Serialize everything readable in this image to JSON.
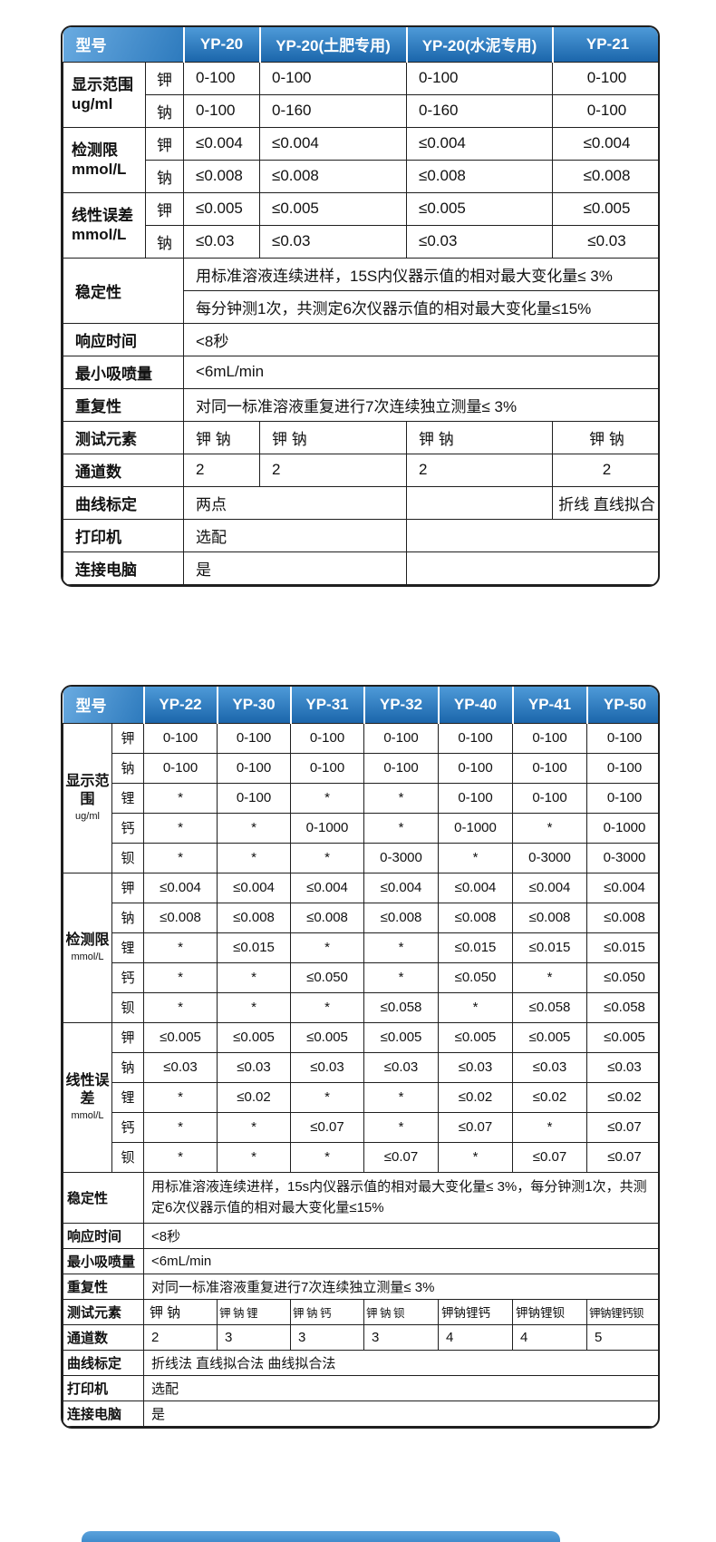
{
  "theme": {
    "header_gradient_top": "#4e9ad8",
    "header_gradient_bottom": "#1b66ab",
    "header_text_color": "#ffffff",
    "border_color": "#1f1f1f",
    "body_text_color": "#111111"
  },
  "table1": {
    "header": [
      "型号",
      "YP-20",
      "YP-20(土肥专用)",
      "YP-20(水泥专用)",
      "YP-21"
    ],
    "groups": [
      {
        "label": "显示范围",
        "unit": "ug/ml",
        "rows": [
          {
            "element": "钾",
            "values": [
              "0-100",
              "0-100",
              "0-100",
              "0-100"
            ]
          },
          {
            "element": "钠",
            "values": [
              "0-100",
              "0-160",
              "0-160",
              "0-100"
            ]
          }
        ]
      },
      {
        "label": "检测限",
        "unit": "mmol/L",
        "rows": [
          {
            "element": "钾",
            "values": [
              "≤0.004",
              "≤0.004",
              "≤0.004",
              "≤0.004"
            ]
          },
          {
            "element": "钠",
            "values": [
              "≤0.008",
              "≤0.008",
              "≤0.008",
              "≤0.008"
            ]
          }
        ]
      },
      {
        "label": "线性误差",
        "unit": "mmol/L",
        "rows": [
          {
            "element": "钾",
            "values": [
              "≤0.005",
              "≤0.005",
              "≤0.005",
              "≤0.005"
            ]
          },
          {
            "element": "钠",
            "values": [
              "≤0.03",
              "≤0.03",
              "≤0.03",
              "≤0.03"
            ]
          }
        ]
      }
    ],
    "stability": {
      "label": "稳定性",
      "lines": [
        "用标准溶液连续进样，15S内仪器示值的相对最大变化量≤ 3%",
        "每分钟测1次，共测定6次仪器示值的相对最大变化量≤15%"
      ]
    },
    "simple_rows": [
      {
        "label": "响应时间",
        "value": "<8秒"
      },
      {
        "label": "最小吸喷量",
        "value": "<6mL/min"
      },
      {
        "label": "重复性",
        "value": "对同一标准溶液重复进行7次连续独立测量≤ 3%"
      }
    ],
    "elements_row": {
      "label": "测试元素",
      "values": [
        "钾 钠",
        "钾 钠",
        "钾 钠",
        "钾 钠"
      ]
    },
    "channels_row": {
      "label": "通道数",
      "values": [
        "2",
        "2",
        "2",
        "2"
      ]
    },
    "calibration_row": {
      "label": "曲线标定",
      "two_point": "两点",
      "col3": "",
      "col4": "折线 直线拟合"
    },
    "printer_row": {
      "label": "打印机",
      "value": "选配",
      "empty": ""
    },
    "pc_row": {
      "label": "连接电脑",
      "value": "是",
      "empty": ""
    }
  },
  "table2": {
    "header": [
      "型号",
      "YP-22",
      "YP-30",
      "YP-31",
      "YP-32",
      "YP-40",
      "YP-41",
      "YP-50"
    ],
    "groups": [
      {
        "label": "显示范围",
        "unit": "ug/ml",
        "rows": [
          {
            "element": "钾",
            "values": [
              "0-100",
              "0-100",
              "0-100",
              "0-100",
              "0-100",
              "0-100",
              "0-100"
            ]
          },
          {
            "element": "钠",
            "values": [
              "0-100",
              "0-100",
              "0-100",
              "0-100",
              "0-100",
              "0-100",
              "0-100"
            ]
          },
          {
            "element": "锂",
            "values": [
              "*",
              "0-100",
              "*",
              "*",
              "0-100",
              "0-100",
              "0-100"
            ]
          },
          {
            "element": "钙",
            "values": [
              "*",
              "*",
              "0-1000",
              "*",
              "0-1000",
              "*",
              "0-1000"
            ]
          },
          {
            "element": "钡",
            "values": [
              "*",
              "*",
              "*",
              "0-3000",
              "*",
              "0-3000",
              "0-3000"
            ]
          }
        ]
      },
      {
        "label": "检测限",
        "unit": "mmol/L",
        "rows": [
          {
            "element": "钾",
            "values": [
              "≤0.004",
              "≤0.004",
              "≤0.004",
              "≤0.004",
              "≤0.004",
              "≤0.004",
              "≤0.004"
            ]
          },
          {
            "element": "钠",
            "values": [
              "≤0.008",
              "≤0.008",
              "≤0.008",
              "≤0.008",
              "≤0.008",
              "≤0.008",
              "≤0.008"
            ]
          },
          {
            "element": "锂",
            "values": [
              "*",
              "≤0.015",
              "*",
              "*",
              "≤0.015",
              "≤0.015",
              "≤0.015"
            ]
          },
          {
            "element": "钙",
            "values": [
              "*",
              "*",
              "≤0.050",
              "*",
              "≤0.050",
              "*",
              "≤0.050"
            ]
          },
          {
            "element": "钡",
            "values": [
              "*",
              "*",
              "*",
              "≤0.058",
              "*",
              "≤0.058",
              "≤0.058"
            ]
          }
        ]
      },
      {
        "label": "线性误差",
        "unit": "mmol/L",
        "rows": [
          {
            "element": "钾",
            "values": [
              "≤0.005",
              "≤0.005",
              "≤0.005",
              "≤0.005",
              "≤0.005",
              "≤0.005",
              "≤0.005"
            ]
          },
          {
            "element": "钠",
            "values": [
              "≤0.03",
              "≤0.03",
              "≤0.03",
              "≤0.03",
              "≤0.03",
              "≤0.03",
              "≤0.03"
            ]
          },
          {
            "element": "锂",
            "values": [
              "*",
              "≤0.02",
              "*",
              "*",
              "≤0.02",
              "≤0.02",
              "≤0.02"
            ]
          },
          {
            "element": "钙",
            "values": [
              "*",
              "*",
              "≤0.07",
              "*",
              "≤0.07",
              "*",
              "≤0.07"
            ]
          },
          {
            "element": "钡",
            "values": [
              "*",
              "*",
              "*",
              "≤0.07",
              "*",
              "≤0.07",
              "≤0.07"
            ]
          }
        ]
      }
    ],
    "stability": {
      "label": "稳定性",
      "text": "用标准溶液连续进样，15s内仪器示值的相对最大变化量≤ 3%，每分钟测1次，共测定6次仪器示值的相对最大变化量≤15%"
    },
    "simple_rows": [
      {
        "label": "响应时间",
        "value": "<8秒"
      },
      {
        "label": "最小吸喷量",
        "value": "<6mL/min"
      },
      {
        "label": "重复性",
        "value": "对同一标准溶液重复进行7次连续独立测量≤ 3%"
      }
    ],
    "elements_row": {
      "label": "测试元素",
      "values": [
        "钾 钠",
        "钾 钠 锂",
        "钾 钠 钙",
        "钾 钠 钡",
        "钾钠锂钙",
        "钾钠锂钡",
        "钾钠锂钙钡"
      ]
    },
    "channels_row": {
      "label": "通道数",
      "values": [
        "2",
        "3",
        "3",
        "3",
        "4",
        "4",
        "5"
      ]
    },
    "calibration_row": {
      "label": "曲线标定",
      "value": "折线法 直线拟合法 曲线拟合法"
    },
    "printer_row": {
      "label": "打印机",
      "value": "选配"
    },
    "pc_row": {
      "label": "连接电脑",
      "value": "是"
    }
  }
}
